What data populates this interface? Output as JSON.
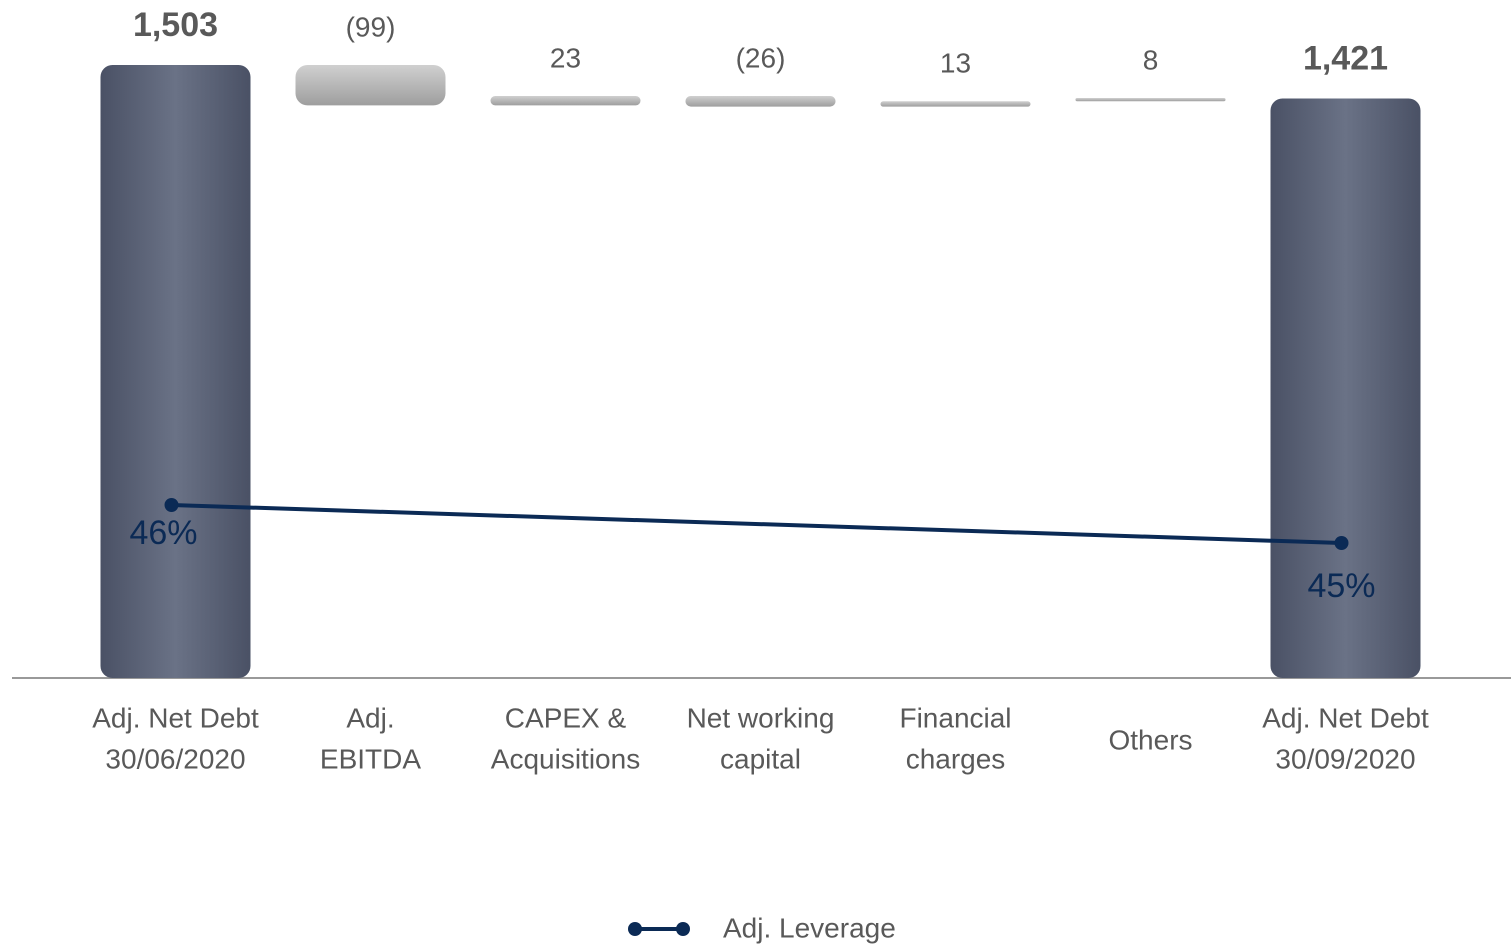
{
  "chart_data": {
    "type": "waterfall",
    "categories": [
      [
        "Adj. Net Debt",
        "30/06/2020"
      ],
      [
        "Adj.",
        "EBITDA"
      ],
      [
        "CAPEX &",
        "Acquisitions"
      ],
      [
        "Net working",
        "capital"
      ],
      [
        "Financial",
        "charges"
      ],
      [
        "Others"
      ],
      [
        "Adj. Net Debt",
        "30/09/2020"
      ]
    ],
    "values": [
      1503,
      -99,
      23,
      -26,
      13,
      8,
      1421
    ],
    "value_labels": [
      "1,503",
      "(99)",
      "23",
      "(26)",
      "13",
      "8",
      "1,421"
    ],
    "is_total": [
      true,
      false,
      false,
      false,
      false,
      false,
      true
    ],
    "total_color": "#5b6377",
    "delta_color": "#b3b3b3",
    "series": [
      {
        "name": "Adj. Leverage",
        "color": "#0b2a55",
        "values": [
          46,
          null,
          null,
          null,
          null,
          null,
          45
        ],
        "value_labels": [
          "46%",
          null,
          null,
          null,
          null,
          null,
          "45%"
        ]
      }
    ]
  }
}
